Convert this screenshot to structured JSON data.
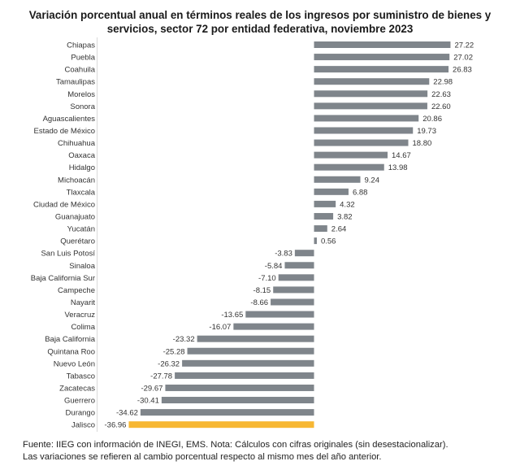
{
  "chart_data": {
    "type": "bar",
    "orientation": "horizontal",
    "title": "Variación porcentual anual en términos reales de los ingresos por suministro de bienes y servicios, sector 72 por entidad federativa, noviembre 2023",
    "title_lines": [
      "Variación porcentual anual en términos reales de los ingresos por suministro de bienes y",
      "servicios, sector 72 por entidad federativa, noviembre 2023"
    ],
    "xlabel": "",
    "ylabel": "",
    "xlim": [
      -36.96,
      27.22
    ],
    "grid": false,
    "legend": "none",
    "categories": [
      "Chiapas",
      "Puebla",
      "Coahuila",
      "Tamaulipas",
      "Morelos",
      "Sonora",
      "Aguascalientes",
      "Estado de México",
      "Chihuahua",
      "Oaxaca",
      "Hidalgo",
      "Michoacán",
      "Tlaxcala",
      "Ciudad de México",
      "Guanajuato",
      "Yucatán",
      "Querétaro",
      "San Luis Potosí",
      "Sinaloa",
      "Baja California Sur",
      "Campeche",
      "Nayarit",
      "Veracruz",
      "Colima",
      "Baja California",
      "Quintana Roo",
      "Nuevo León",
      "Tabasco",
      "Zacatecas",
      "Guerrero",
      "Durango",
      "Jalisco"
    ],
    "values": [
      27.22,
      27.02,
      26.83,
      22.98,
      22.63,
      22.6,
      20.86,
      19.73,
      18.8,
      14.67,
      13.98,
      9.24,
      6.88,
      4.32,
      3.82,
      2.64,
      0.56,
      -3.83,
      -5.84,
      -7.1,
      -8.15,
      -8.66,
      -13.65,
      -16.07,
      -23.32,
      -25.28,
      -26.32,
      -27.78,
      -29.67,
      -30.41,
      -34.62,
      -36.96
    ],
    "value_labels": [
      "27.22",
      "27.02",
      "26.83",
      "22.98",
      "22.63",
      "22.60",
      "20.86",
      "19.73",
      "18.80",
      "14.67",
      "13.98",
      "9.24",
      "6.88",
      "4.32",
      "3.82",
      "2.64",
      "0.56",
      "-3.83",
      "-5.84",
      "-7.10",
      "-8.15",
      "-8.66",
      "-13.65",
      "-16.07",
      "-23.32",
      "-25.28",
      "-26.32",
      "-27.78",
      "-29.67",
      "-30.41",
      "-34.62",
      "-36.96"
    ],
    "highlight": "Jalisco",
    "colors": {
      "default": "#7f858b",
      "highlight": "#f7b733",
      "axis": "#d9d9d9"
    }
  },
  "footnote": {
    "line1": "Fuente: IIEG con información de INEGI, EMS. Nota: Cálculos con cifras originales (sin desestacionalizar).",
    "line2": "Las variaciones se refieren al cambio porcentual respecto al mismo mes del año anterior."
  }
}
